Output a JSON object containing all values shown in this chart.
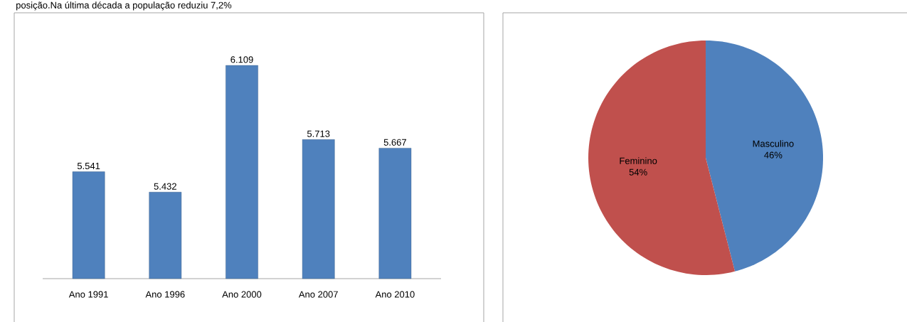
{
  "chart_data": [
    {
      "type": "bar",
      "annotations": [
        "posição.Na última década a população reduziu 7,2%"
      ],
      "categories": [
        "Ano 1991",
        "Ano 1996",
        "Ano 2000",
        "Ano 2007",
        "Ano 2010"
      ],
      "values": [
        5541,
        5432,
        6109,
        5713,
        5667
      ],
      "value_labels": [
        "5.541",
        "5.432",
        "6.109",
        "5.713",
        "5.667"
      ],
      "color": "#4f81bd",
      "ylim": [
        4970,
        6109
      ]
    },
    {
      "type": "pie",
      "categories": [
        "Masculino",
        "Feminino"
      ],
      "values": [
        46,
        54
      ],
      "value_labels": [
        "46%",
        "54%"
      ],
      "colors": [
        "#4f81bd",
        "#c0504d"
      ]
    }
  ]
}
